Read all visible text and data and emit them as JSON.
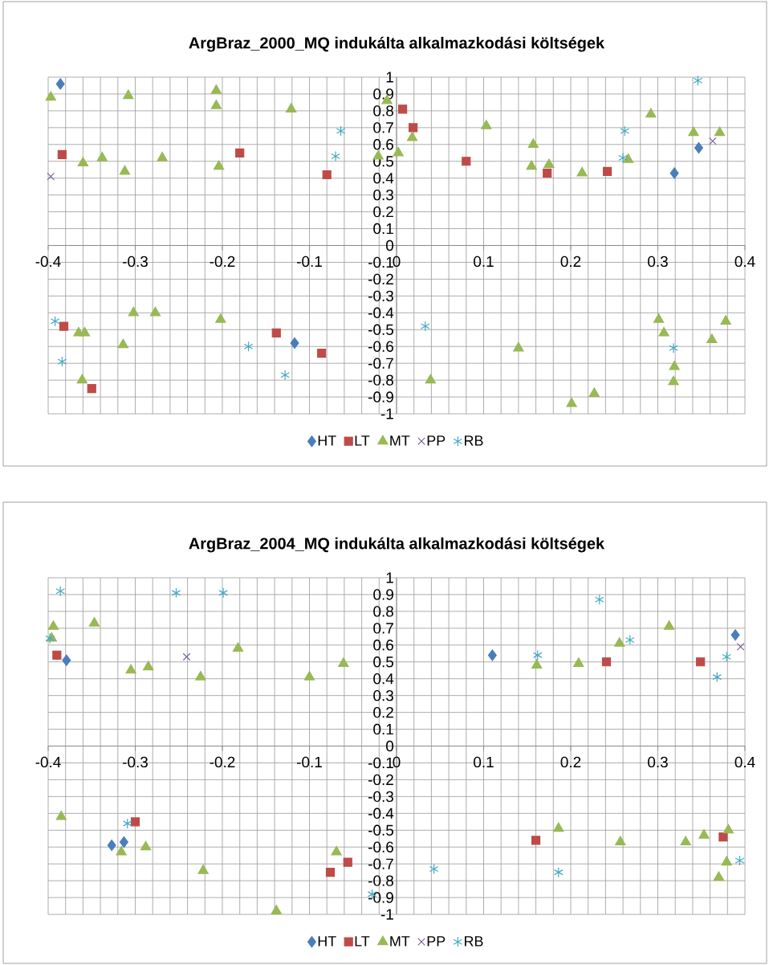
{
  "chart_data": [
    {
      "type": "scatter",
      "title": "ArgBraz_2000_MQ indukálta alkalmazkodási költségek",
      "xlim": [
        -0.4,
        0.4
      ],
      "ylim": [
        -1,
        1
      ],
      "xticks": [
        -0.4,
        -0.3,
        -0.2,
        -0.1,
        0,
        0.1,
        0.2,
        0.3,
        0.4
      ],
      "yticks": [
        -1,
        -0.9,
        -0.8,
        -0.7,
        -0.6,
        -0.5,
        -0.4,
        -0.3,
        -0.2,
        -0.1,
        0,
        0.1,
        0.2,
        0.3,
        0.4,
        0.5,
        0.6,
        0.7,
        0.8,
        0.9,
        1
      ],
      "grid": true,
      "legend": "bottom",
      "series": [
        {
          "name": "HT",
          "color": "#4a7ebb",
          "marker": "diamond",
          "x": [
            -0.386,
            -0.117,
            0.347,
            0.319
          ],
          "values": [
            0.96,
            -0.58,
            0.58,
            0.43
          ]
        },
        {
          "name": "LT",
          "color": "#be4b48",
          "marker": "square",
          "x": [
            -0.384,
            -0.18,
            -0.08,
            -0.382,
            -0.35,
            -0.138,
            -0.086,
            0.007,
            0.019,
            0.08,
            0.173,
            0.242
          ],
          "values": [
            0.54,
            0.55,
            0.42,
            -0.48,
            -0.85,
            -0.52,
            -0.64,
            0.81,
            0.7,
            0.5,
            0.43,
            0.44
          ]
        },
        {
          "name": "MT",
          "color": "#98b954",
          "marker": "triangle",
          "x": [
            -0.397,
            -0.308,
            -0.207,
            -0.207,
            -0.121,
            -0.36,
            -0.338,
            -0.312,
            -0.269,
            -0.204,
            -0.021,
            -0.011,
            0.002,
            0.018,
            0.103,
            0.157,
            0.155,
            0.175,
            0.213,
            0.266,
            0.292,
            0.341,
            0.371,
            -0.302,
            -0.277,
            -0.202,
            -0.365,
            -0.358,
            -0.314,
            -0.361,
            0.301,
            0.307,
            0.362,
            0.378,
            0.14,
            0.039,
            0.319,
            0.318,
            0.201,
            0.227
          ],
          "values": [
            0.88,
            0.89,
            0.92,
            0.83,
            0.81,
            0.49,
            0.52,
            0.44,
            0.52,
            0.47,
            0.53,
            0.86,
            0.55,
            0.64,
            0.71,
            0.6,
            0.47,
            0.48,
            0.43,
            0.51,
            0.78,
            0.67,
            0.67,
            -0.4,
            -0.4,
            -0.44,
            -0.52,
            -0.52,
            -0.59,
            -0.8,
            -0.44,
            -0.52,
            -0.56,
            -0.45,
            -0.61,
            -0.8,
            -0.72,
            -0.81,
            -0.94,
            -0.88
          ]
        },
        {
          "name": "PP",
          "color": "#7d60a0",
          "marker": "cross",
          "x": [
            -0.397,
            0.363
          ],
          "values": [
            0.41,
            0.62
          ]
        },
        {
          "name": "RB",
          "color": "#46aac5",
          "x": [
            -0.064,
            -0.07,
            -0.392,
            -0.384,
            -0.17,
            -0.128,
            0.346,
            0.262,
            0.26,
            0.033,
            0.318
          ],
          "values": [
            0.68,
            0.53,
            -0.45,
            -0.69,
            -0.6,
            -0.77,
            0.98,
            0.68,
            0.52,
            -0.48,
            -0.61
          ]
        }
      ]
    },
    {
      "type": "scatter",
      "title": "ArgBraz_2004_MQ indukálta alkalmazkodási költségek",
      "xlim": [
        -0.4,
        0.4
      ],
      "ylim": [
        -1,
        1
      ],
      "xticks": [
        -0.4,
        -0.3,
        -0.2,
        -0.1,
        0,
        0.1,
        0.2,
        0.3,
        0.4
      ],
      "yticks": [
        -1,
        -0.9,
        -0.8,
        -0.7,
        -0.6,
        -0.5,
        -0.4,
        -0.3,
        -0.2,
        -0.1,
        0,
        0.1,
        0.2,
        0.3,
        0.4,
        0.5,
        0.6,
        0.7,
        0.8,
        0.9,
        1
      ],
      "grid": true,
      "legend": "bottom",
      "series": [
        {
          "name": "HT",
          "color": "#4a7ebb",
          "marker": "diamond",
          "x": [
            -0.379,
            -0.327,
            -0.313,
            0.11,
            0.389
          ],
          "values": [
            0.51,
            -0.59,
            -0.57,
            0.54,
            0.66
          ]
        },
        {
          "name": "LT",
          "color": "#be4b48",
          "marker": "square",
          "x": [
            -0.39,
            -0.3,
            -0.076,
            -0.056,
            0.241,
            0.349,
            0.16,
            0.375
          ],
          "values": [
            0.54,
            -0.45,
            -0.75,
            -0.69,
            0.5,
            0.5,
            -0.56,
            -0.54
          ]
        },
        {
          "name": "MT",
          "color": "#98b954",
          "marker": "triangle",
          "x": [
            -0.394,
            -0.396,
            -0.347,
            -0.305,
            -0.285,
            -0.225,
            -0.182,
            -0.1,
            -0.061,
            -0.385,
            -0.316,
            -0.288,
            -0.222,
            -0.138,
            -0.069,
            0.161,
            0.209,
            0.256,
            0.313,
            0.186,
            0.257,
            0.332,
            0.353,
            0.381,
            0.379,
            0.37
          ],
          "values": [
            0.71,
            0.64,
            0.73,
            0.45,
            0.47,
            0.41,
            0.58,
            0.41,
            0.49,
            -0.42,
            -0.63,
            -0.6,
            -0.74,
            -0.98,
            -0.63,
            0.48,
            0.49,
            0.61,
            0.71,
            -0.49,
            -0.57,
            -0.57,
            -0.53,
            -0.5,
            -0.69,
            -0.78
          ]
        },
        {
          "name": "PP",
          "color": "#7d60a0",
          "marker": "cross",
          "x": [
            -0.241,
            0.395
          ],
          "values": [
            0.53,
            0.59
          ]
        },
        {
          "name": "RB",
          "color": "#46aac5",
          "x": [
            -0.386,
            -0.253,
            -0.199,
            -0.398,
            -0.309,
            -0.028,
            0.233,
            0.162,
            0.268,
            0.379,
            0.368,
            0.043,
            0.186,
            0.394
          ],
          "values": [
            0.92,
            0.91,
            0.91,
            0.64,
            -0.46,
            -0.88,
            0.87,
            0.54,
            0.63,
            0.53,
            0.41,
            -0.73,
            -0.75,
            -0.68
          ]
        }
      ]
    }
  ]
}
